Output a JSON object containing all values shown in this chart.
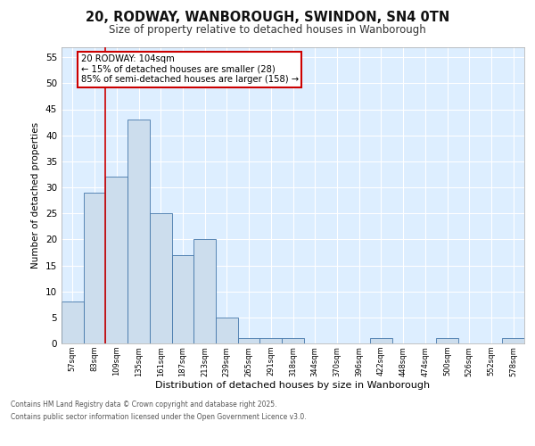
{
  "title_line1": "20, RODWAY, WANBOROUGH, SWINDON, SN4 0TN",
  "title_line2": "Size of property relative to detached houses in Wanborough",
  "xlabel": "Distribution of detached houses by size in Wanborough",
  "ylabel": "Number of detached properties",
  "categories": [
    "57sqm",
    "83sqm",
    "109sqm",
    "135sqm",
    "161sqm",
    "187sqm",
    "213sqm",
    "239sqm",
    "265sqm",
    "291sqm",
    "318sqm",
    "344sqm",
    "370sqm",
    "396sqm",
    "422sqm",
    "448sqm",
    "474sqm",
    "500sqm",
    "526sqm",
    "552sqm",
    "578sqm"
  ],
  "values": [
    8,
    29,
    32,
    43,
    25,
    17,
    20,
    5,
    1,
    1,
    1,
    0,
    0,
    0,
    1,
    0,
    0,
    1,
    0,
    0,
    1
  ],
  "bar_color": "#ccdded",
  "bar_edge_color": "#4477aa",
  "bg_color": "#ddeeff",
  "grid_color": "#ffffff",
  "redline_x": 1.5,
  "annotation_text": "20 RODWAY: 104sqm\n← 15% of detached houses are smaller (28)\n85% of semi-detached houses are larger (158) →",
  "annotation_box_color": "#ffffff",
  "annotation_border_color": "#cc0000",
  "ylim": [
    0,
    57
  ],
  "yticks": [
    0,
    5,
    10,
    15,
    20,
    25,
    30,
    35,
    40,
    45,
    50,
    55
  ],
  "footer_line1": "Contains HM Land Registry data © Crown copyright and database right 2025.",
  "footer_line2": "Contains public sector information licensed under the Open Government Licence v3.0."
}
